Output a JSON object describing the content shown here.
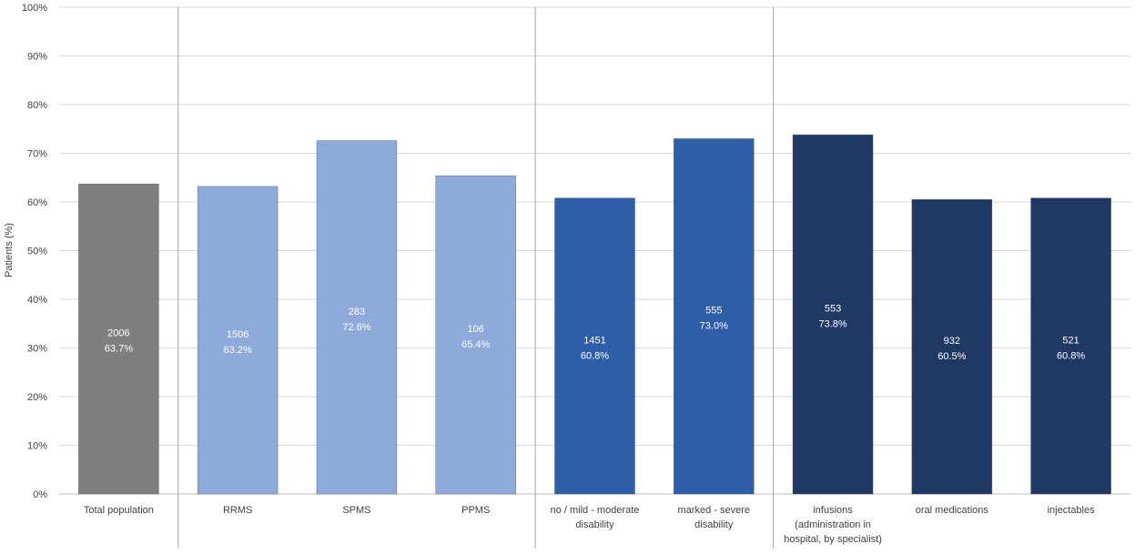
{
  "chart_data": {
    "type": "bar",
    "title": "",
    "xlabel": "",
    "ylabel": "Patients (%)",
    "ylim": [
      0,
      100
    ],
    "yticks": [
      "0%",
      "10%",
      "20%",
      "30%",
      "40%",
      "50%",
      "60%",
      "70%",
      "80%",
      "90%",
      "100%"
    ],
    "grid": true,
    "categories": [
      [
        "Total population"
      ],
      [
        "RRMS"
      ],
      [
        "SPMS"
      ],
      [
        "PPMS"
      ],
      [
        "no / mild - moderate",
        "disability"
      ],
      [
        "marked - severe",
        "disability"
      ],
      [
        "infusions",
        "(administration in",
        "hospital, by specialist)"
      ],
      [
        "oral medications"
      ],
      [
        "injectables"
      ]
    ],
    "values": [
      63.7,
      63.2,
      72.6,
      65.4,
      60.8,
      73.0,
      73.8,
      60.5,
      60.8
    ],
    "counts": [
      "2006",
      "1506",
      "283",
      "106",
      "1451",
      "555",
      "553",
      "932",
      "521"
    ],
    "value_labels": [
      "63.7%",
      "63.2%",
      "72.6%",
      "65.4%",
      "60.8%",
      "73.0%",
      "73.8%",
      "60.5%",
      "60.8%"
    ],
    "groups": [
      {
        "name": "total",
        "members": [
          0
        ],
        "color": "#7f7f7f"
      },
      {
        "name": "ms-type",
        "members": [
          1,
          2,
          3
        ],
        "color": "#8eaadb"
      },
      {
        "name": "disability",
        "members": [
          4,
          5
        ],
        "color": "#2f5ea8"
      },
      {
        "name": "administration",
        "members": [
          6,
          7,
          8
        ],
        "color": "#1f3864"
      }
    ]
  }
}
